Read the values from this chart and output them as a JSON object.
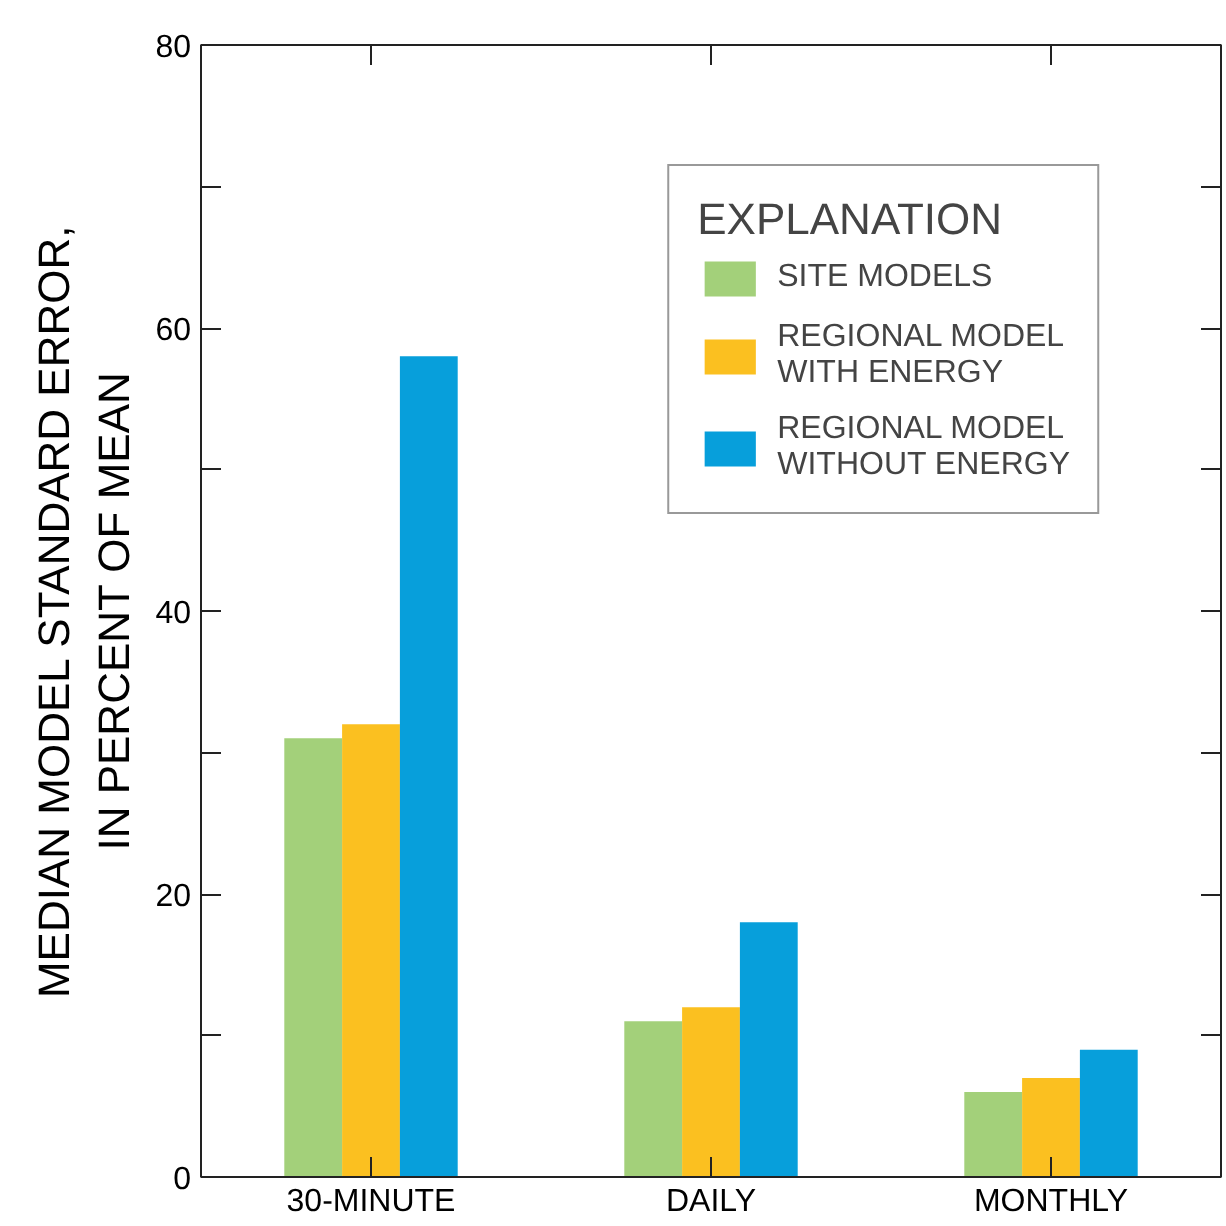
{
  "chart_data": {
    "type": "bar",
    "ylabel": "MEDIAN MODEL STANDARD ERROR,\nIN PERCENT OF MEAN",
    "legend_title": "EXPLANATION",
    "legend": "top right",
    "grid": false,
    "categories": [
      "30-MINUTE",
      "DAILY",
      "MONTHLY"
    ],
    "ylim": [
      0,
      80
    ],
    "yticks": [
      0,
      {
        "value": 10,
        "label": null
      },
      20,
      {
        "value": 30,
        "label": null
      },
      40,
      {
        "value": 50,
        "label": null
      },
      60,
      {
        "value": 70,
        "label": null
      },
      80
    ],
    "series": [
      {
        "name": "SITE MODELS",
        "color": "#a3d07a",
        "values": [
          31,
          11,
          6
        ]
      },
      {
        "name": "REGIONAL MODEL\nWITH ENERGY",
        "color": "#fbc020",
        "values": [
          32,
          12,
          7
        ]
      },
      {
        "name": "REGIONAL MODEL\nWITHOUT ENERGY",
        "color": "#079fdb",
        "values": [
          58,
          18,
          9
        ]
      }
    ]
  }
}
